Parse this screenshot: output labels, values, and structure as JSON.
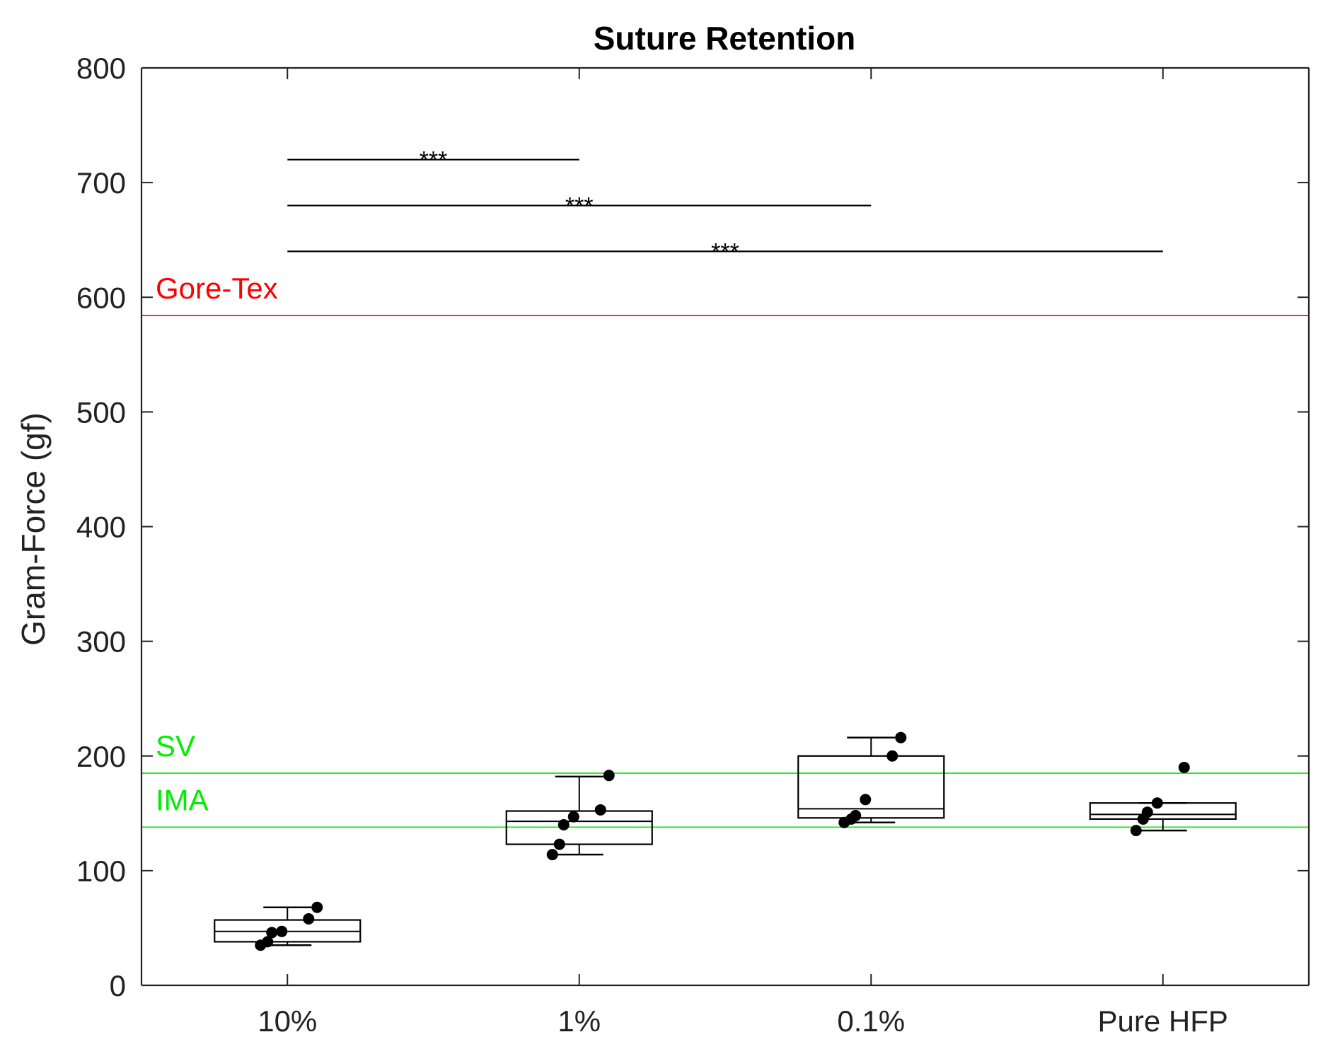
{
  "chart_data": {
    "type": "box",
    "title": "Suture Retention",
    "xlabel": "",
    "ylabel": "Gram-Force (gf)",
    "ylim": [
      0,
      800
    ],
    "yticks": [
      0,
      100,
      200,
      300,
      400,
      500,
      600,
      700,
      800
    ],
    "categories": [
      "10%",
      "1%",
      "0.1%",
      "Pure HFP"
    ],
    "grid": false,
    "boxes": [
      {
        "category": "10%",
        "whisker_low": 35,
        "q1": 38,
        "median": 47,
        "q3": 57,
        "whisker_high": 68
      },
      {
        "category": "1%",
        "whisker_low": 114,
        "q1": 123,
        "median": 143,
        "q3": 152,
        "whisker_high": 182
      },
      {
        "category": "0.1%",
        "whisker_low": 142,
        "q1": 146,
        "median": 154,
        "q3": 200,
        "whisker_high": 216
      },
      {
        "category": "Pure HFP",
        "whisker_low": 135,
        "q1": 145,
        "median": 149,
        "q3": 159,
        "whisker_high": 159
      }
    ],
    "points": [
      {
        "category": "10%",
        "values": [
          35,
          38,
          46,
          47,
          58,
          68
        ]
      },
      {
        "category": "1%",
        "values": [
          114,
          123,
          140,
          147,
          153,
          183
        ]
      },
      {
        "category": "0.1%",
        "values": [
          142,
          145,
          148,
          162,
          200,
          216
        ]
      },
      {
        "category": "Pure HFP",
        "values": [
          135,
          145,
          151,
          159,
          190
        ]
      }
    ],
    "reference_lines": [
      {
        "label": "Gore-Tex",
        "value": 584,
        "color": "#ff0000"
      },
      {
        "label": "SV",
        "value": 185,
        "color": "#00ee00"
      },
      {
        "label": "IMA",
        "value": 138,
        "color": "#00ee00"
      }
    ],
    "significance": [
      {
        "from": "10%",
        "to": "1%",
        "y": 720,
        "label": "***"
      },
      {
        "from": "10%",
        "to": "0.1%",
        "y": 680,
        "label": "***"
      },
      {
        "from": "10%",
        "to": "Pure HFP",
        "y": 640,
        "label": "***"
      }
    ]
  }
}
